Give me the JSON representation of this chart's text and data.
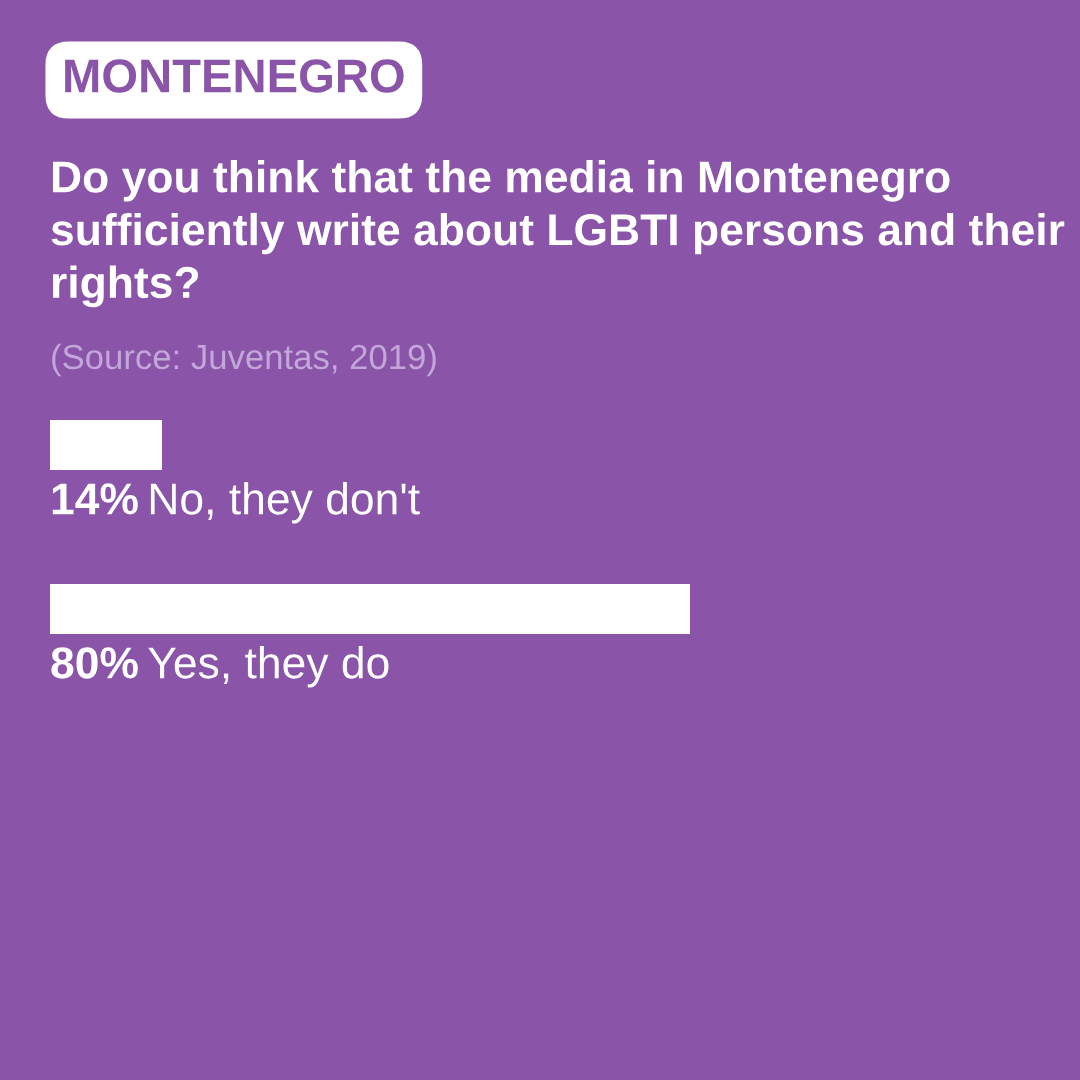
{
  "chart_data": {
    "type": "bar",
    "orientation": "horizontal",
    "title": "MONTENEGRO",
    "subtitle": "Do you think that the media in Montenegro sufficiently write about LGBTI persons and their rights?",
    "annotations": [
      "(Source: Juventas, 2019)"
    ],
    "categories": [
      "No, they don't",
      "Yes, they do"
    ],
    "values": [
      14,
      80
    ],
    "value_labels": [
      "14%",
      "80%"
    ],
    "color": "#ffffff",
    "tick_labels": false
  }
}
